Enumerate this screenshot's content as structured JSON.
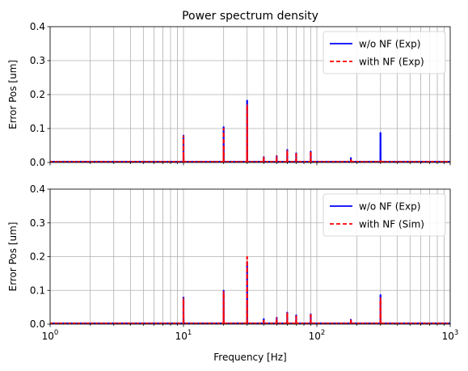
{
  "chart_data": [
    {
      "type": "line",
      "title": "Power spectrum density",
      "xlabel": "",
      "ylabel": "Error Pos [um]",
      "xscale": "log",
      "xlim": [
        1,
        1000
      ],
      "ylim": [
        0,
        0.4
      ],
      "yticks": [
        "0.0",
        "0.1",
        "0.2",
        "0.3",
        "0.4"
      ],
      "grid": true,
      "legend": "top-right",
      "baseline_noise": 0.003,
      "series": [
        {
          "name": "w/o NF (Exp)",
          "color": "#0000ff",
          "dash": "solid",
          "peaks": [
            {
              "x": 10,
              "y": 0.08
            },
            {
              "x": 20,
              "y": 0.105
            },
            {
              "x": 30,
              "y": 0.183
            },
            {
              "x": 40,
              "y": 0.017
            },
            {
              "x": 50,
              "y": 0.02
            },
            {
              "x": 60,
              "y": 0.038
            },
            {
              "x": 70,
              "y": 0.028
            },
            {
              "x": 90,
              "y": 0.033
            },
            {
              "x": 180,
              "y": 0.014
            },
            {
              "x": 300,
              "y": 0.088
            }
          ]
        },
        {
          "name": "with NF (Exp)",
          "color": "#ff0000",
          "dash": "dashed",
          "peaks": [
            {
              "x": 10,
              "y": 0.078
            },
            {
              "x": 20,
              "y": 0.1
            },
            {
              "x": 30,
              "y": 0.17
            },
            {
              "x": 40,
              "y": 0.016
            },
            {
              "x": 50,
              "y": 0.019
            },
            {
              "x": 60,
              "y": 0.035
            },
            {
              "x": 70,
              "y": 0.026
            },
            {
              "x": 90,
              "y": 0.03
            },
            {
              "x": 180,
              "y": 0.008
            },
            {
              "x": 300,
              "y": 0.005
            }
          ]
        }
      ]
    },
    {
      "type": "line",
      "title": "",
      "xlabel": "Frequency [Hz]",
      "ylabel": "Error Pos [um]",
      "xscale": "log",
      "xlim": [
        1,
        1000
      ],
      "ylim": [
        0,
        0.4
      ],
      "xticks": [
        {
          "base": "10",
          "exp": "0"
        },
        {
          "base": "10",
          "exp": "1"
        },
        {
          "base": "10",
          "exp": "2"
        },
        {
          "base": "10",
          "exp": "3"
        }
      ],
      "yticks": [
        "0.0",
        "0.1",
        "0.2",
        "0.3",
        "0.4"
      ],
      "grid": true,
      "legend": "top-right",
      "baseline_noise": 0.003,
      "series": [
        {
          "name": "w/o NF (Exp)",
          "color": "#0000ff",
          "dash": "solid",
          "peaks": [
            {
              "x": 10,
              "y": 0.08
            },
            {
              "x": 20,
              "y": 0.1
            },
            {
              "x": 30,
              "y": 0.185
            },
            {
              "x": 40,
              "y": 0.016
            },
            {
              "x": 50,
              "y": 0.02
            },
            {
              "x": 60,
              "y": 0.035
            },
            {
              "x": 70,
              "y": 0.027
            },
            {
              "x": 90,
              "y": 0.03
            },
            {
              "x": 180,
              "y": 0.014
            },
            {
              "x": 300,
              "y": 0.087
            }
          ]
        },
        {
          "name": "with NF (Sim)",
          "color": "#ff0000",
          "dash": "dashed",
          "peaks": [
            {
              "x": 10,
              "y": 0.077
            },
            {
              "x": 20,
              "y": 0.098
            },
            {
              "x": 30,
              "y": 0.2
            },
            {
              "x": 40,
              "y": 0.014
            },
            {
              "x": 50,
              "y": 0.019
            },
            {
              "x": 60,
              "y": 0.033
            },
            {
              "x": 70,
              "y": 0.025
            },
            {
              "x": 90,
              "y": 0.028
            },
            {
              "x": 180,
              "y": 0.012
            },
            {
              "x": 300,
              "y": 0.078
            }
          ]
        }
      ]
    }
  ]
}
